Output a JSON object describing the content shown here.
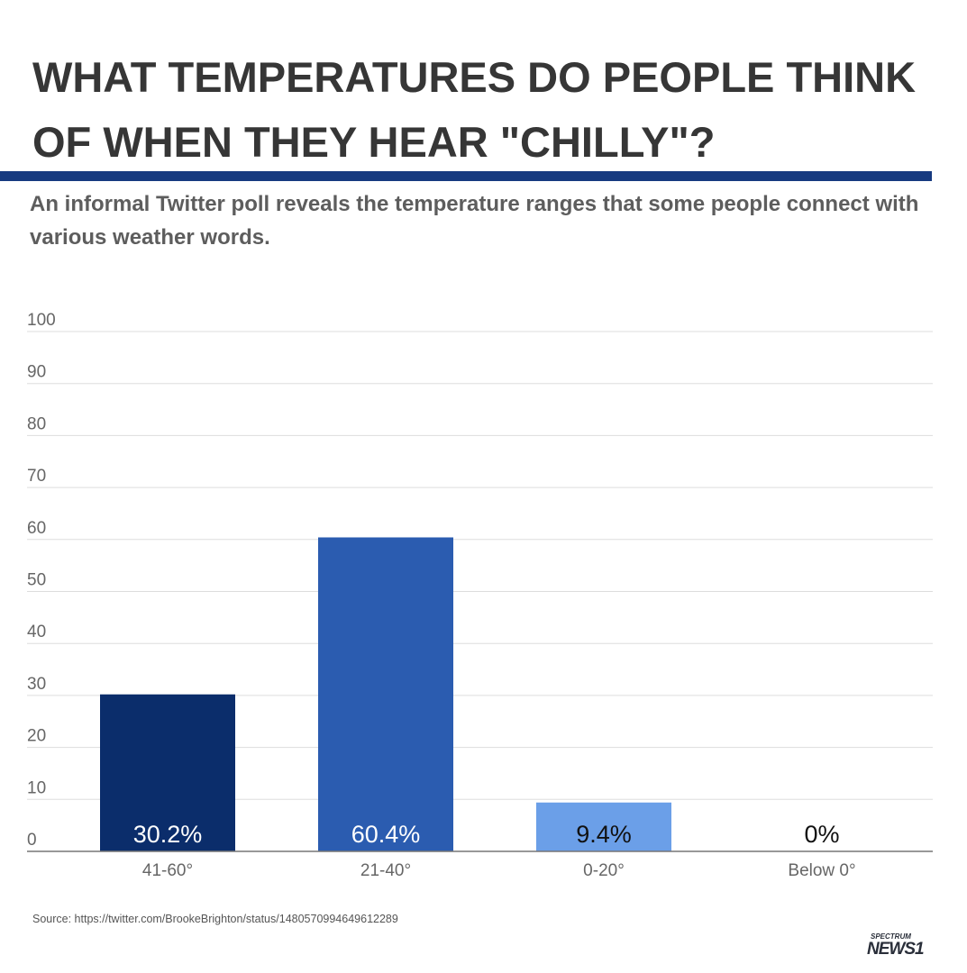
{
  "header": {
    "title": "WHAT TEMPERATURES DO PEOPLE THINK OF WHEN THEY HEAR \"CHILLY\"?",
    "subtitle": "An informal Twitter poll reveals the temperature ranges that some people connect with various weather words."
  },
  "footer": {
    "source": "Source: https://twitter.com/BrookeBrighton/status/1480570994649612289",
    "logo_top": "SPECTRUM",
    "logo_bottom": "NEWS1"
  },
  "colors": {
    "rule": "#163a80",
    "bars": [
      "#0b2d6b",
      "#2b5cb0",
      "#6b9fe8",
      "#6b9fe8"
    ]
  },
  "chart_data": {
    "type": "bar",
    "categories": [
      "41-60°",
      "21-40°",
      "0-20°",
      "Below 0°"
    ],
    "values": [
      30.2,
      60.4,
      9.4,
      0
    ],
    "data_labels": [
      "30.2%",
      "60.4%",
      "9.4%",
      "0%"
    ],
    "ylim": [
      0,
      100
    ],
    "yticks": [
      0,
      10,
      20,
      30,
      40,
      50,
      60,
      70,
      80,
      90,
      100
    ],
    "grid": true,
    "xlabel": "",
    "ylabel": ""
  }
}
